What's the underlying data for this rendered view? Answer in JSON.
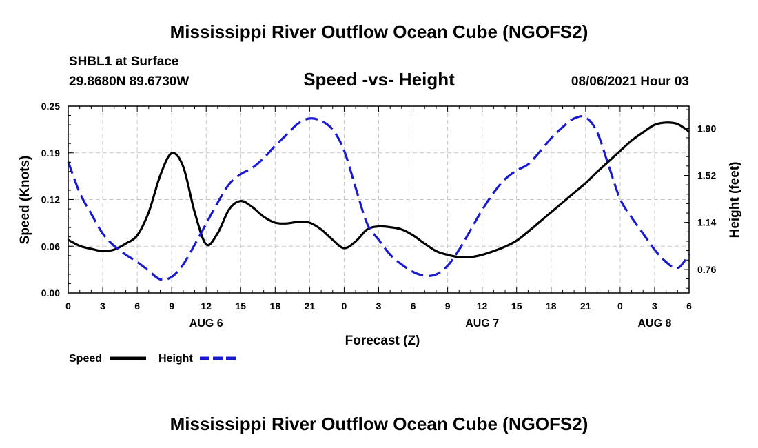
{
  "header": {
    "title": "Mississippi River Outflow Ocean Cube (NGOFS2)",
    "footer_title": "Mississippi River Outflow Ocean Cube (NGOFS2)",
    "station": "SHBL1 at Surface",
    "coords": "29.8680N  89.6730W",
    "subtitle": "Speed -vs- Height",
    "datetime": "08/06/2021 Hour 03"
  },
  "chart_data": {
    "type": "line",
    "title": "Speed -vs- Height",
    "xlabel": "Forecast (Z)",
    "ylabel_left": "Speed (Knots)",
    "ylabel_right": "Height (feet)",
    "x_ticks": [
      "0",
      "3",
      "6",
      "9",
      "12",
      "15",
      "18",
      "21",
      "0",
      "3",
      "6",
      "9",
      "12",
      "15",
      "18",
      "21",
      "0",
      "3",
      "6"
    ],
    "day_labels": [
      {
        "text": "AUG 6",
        "x": 12
      },
      {
        "text": "AUG 7",
        "x": 36
      },
      {
        "text": "AUG 8",
        "x": 51
      }
    ],
    "xlim": [
      0,
      54
    ],
    "ylim_left": [
      0,
      0.25
    ],
    "yticks_left": [
      "0.00",
      "0.06",
      "0.12",
      "0.19",
      "0.25"
    ],
    "yticks_left_values": [
      0,
      0.0625,
      0.125,
      0.1875,
      0.25
    ],
    "ylim_right": [
      0.57,
      2.08
    ],
    "yticks_right": [
      "0.76",
      "1.14",
      "1.52",
      "1.90"
    ],
    "yticks_right_values": [
      0.76,
      1.14,
      1.52,
      1.9
    ],
    "grid": true,
    "series": [
      {
        "name": "Speed",
        "axis": "left",
        "color": "#000000",
        "dashed": false,
        "x": [
          0,
          1,
          2,
          3,
          4,
          5,
          6,
          7,
          8,
          9,
          10,
          11,
          12,
          13,
          14,
          15,
          16,
          17,
          18,
          19,
          20,
          21,
          22,
          23,
          24,
          25,
          26,
          27,
          28,
          29,
          30,
          31,
          32,
          33,
          34,
          35,
          36,
          37,
          38,
          39,
          40,
          41,
          42,
          43,
          44,
          45,
          46,
          47,
          48,
          49,
          50,
          51,
          52,
          53,
          54
        ],
        "values": [
          0.071,
          0.063,
          0.059,
          0.056,
          0.058,
          0.066,
          0.077,
          0.108,
          0.157,
          0.187,
          0.169,
          0.108,
          0.065,
          0.08,
          0.112,
          0.123,
          0.115,
          0.102,
          0.094,
          0.093,
          0.095,
          0.094,
          0.085,
          0.071,
          0.06,
          0.069,
          0.085,
          0.089,
          0.088,
          0.085,
          0.077,
          0.066,
          0.056,
          0.051,
          0.048,
          0.048,
          0.051,
          0.056,
          0.062,
          0.07,
          0.082,
          0.095,
          0.108,
          0.121,
          0.134,
          0.147,
          0.162,
          0.176,
          0.19,
          0.204,
          0.215,
          0.225,
          0.228,
          0.226,
          0.216
        ]
      },
      {
        "name": "Height",
        "axis": "right",
        "color": "#1a1ad0",
        "dashed": true,
        "x": [
          0,
          1,
          2,
          3,
          4,
          5,
          6,
          7,
          8,
          9,
          10,
          11,
          12,
          13,
          14,
          15,
          16,
          17,
          18,
          19,
          20,
          21,
          22,
          23,
          24,
          25,
          26,
          27,
          28,
          29,
          30,
          31,
          32,
          33,
          34,
          35,
          36,
          37,
          38,
          39,
          40,
          41,
          42,
          43,
          44,
          45,
          46,
          47,
          48,
          49,
          50,
          51,
          52,
          53,
          54
        ],
        "values": [
          1.63,
          1.38,
          1.21,
          1.05,
          0.95,
          0.88,
          0.82,
          0.75,
          0.68,
          0.7,
          0.8,
          0.96,
          1.13,
          1.3,
          1.45,
          1.53,
          1.58,
          1.66,
          1.76,
          1.85,
          1.94,
          1.98,
          1.96,
          1.89,
          1.72,
          1.42,
          1.13,
          1.0,
          0.88,
          0.8,
          0.74,
          0.71,
          0.72,
          0.79,
          0.92,
          1.08,
          1.24,
          1.38,
          1.49,
          1.56,
          1.61,
          1.71,
          1.82,
          1.91,
          1.98,
          1.99,
          1.87,
          1.6,
          1.33,
          1.18,
          1.05,
          0.92,
          0.82,
          0.77,
          0.88
        ]
      }
    ]
  },
  "legend": [
    {
      "label": "Speed",
      "color": "#000000",
      "dashed": false
    },
    {
      "label": "Height",
      "color": "#1a1ad0",
      "dashed": true
    }
  ]
}
